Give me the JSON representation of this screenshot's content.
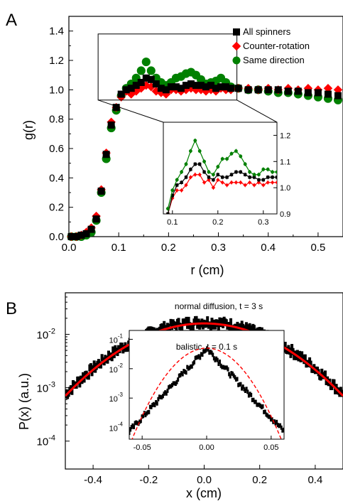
{
  "colors": {
    "all": "#000000",
    "counter": "#ff0000",
    "same": "#008000",
    "fit": "#ff0000"
  },
  "chart_data": [
    {
      "panel": "A",
      "type": "scatter",
      "xlabel": "r (cm)",
      "ylabel": "g(r)",
      "xlim": [
        0.0,
        0.55
      ],
      "ylim": [
        0.0,
        1.5
      ],
      "xticks": [
        "0.0",
        "0.1",
        "0.2",
        "0.3",
        "0.4",
        "0.5"
      ],
      "yticks": [
        "0.0",
        "0.2",
        "0.4",
        "0.6",
        "0.8",
        "1.0",
        "1.2",
        "1.4"
      ],
      "legend_position": "top-right",
      "series": [
        {
          "name": "All spinners",
          "marker": "square",
          "color": "#000000",
          "x": [
            0.005,
            0.015,
            0.025,
            0.035,
            0.045,
            0.055,
            0.065,
            0.075,
            0.085,
            0.095,
            0.105,
            0.115,
            0.125,
            0.135,
            0.145,
            0.155,
            0.165,
            0.175,
            0.185,
            0.195,
            0.205,
            0.215,
            0.225,
            0.235,
            0.245,
            0.255,
            0.265,
            0.275,
            0.285,
            0.295,
            0.305,
            0.315,
            0.325,
            0.34,
            0.36,
            0.38,
            0.4,
            0.42,
            0.44,
            0.46,
            0.48,
            0.5,
            0.52,
            0.54
          ],
          "y": [
            0.0,
            0.0,
            0.01,
            0.02,
            0.05,
            0.12,
            0.31,
            0.56,
            0.76,
            0.88,
            0.97,
            1.0,
            1.01,
            1.03,
            1.05,
            1.08,
            1.07,
            1.04,
            1.01,
            1.0,
            1.02,
            1.02,
            1.01,
            1.03,
            1.04,
            1.03,
            1.03,
            1.02,
            1.03,
            1.01,
            1.02,
            1.02,
            1.01,
            1.01,
            1.0,
            1.0,
            1.0,
            1.0,
            0.99,
            0.99,
            0.98,
            0.98,
            0.97,
            0.96
          ]
        },
        {
          "name": "Counter-rotation",
          "marker": "diamond",
          "color": "#ff0000",
          "x": [
            0.005,
            0.015,
            0.025,
            0.035,
            0.045,
            0.055,
            0.065,
            0.075,
            0.085,
            0.095,
            0.105,
            0.115,
            0.125,
            0.135,
            0.145,
            0.155,
            0.165,
            0.175,
            0.185,
            0.195,
            0.205,
            0.215,
            0.225,
            0.235,
            0.245,
            0.255,
            0.265,
            0.275,
            0.285,
            0.295,
            0.305,
            0.315,
            0.325,
            0.34,
            0.36,
            0.38,
            0.4,
            0.42,
            0.44,
            0.46,
            0.48,
            0.5,
            0.52,
            0.54
          ],
          "y": [
            0.0,
            0.0,
            0.01,
            0.03,
            0.06,
            0.14,
            0.32,
            0.57,
            0.78,
            0.88,
            0.95,
            0.99,
            0.97,
            0.99,
            1.01,
            1.03,
            1.02,
            0.99,
            0.98,
            0.97,
            1.0,
            1.0,
            0.99,
            1.0,
            1.01,
            1.0,
            1.0,
            0.99,
            1.0,
            0.99,
            1.01,
            1.0,
            1.0,
            1.01,
            1.01,
            1.0,
            1.01,
            1.0,
            1.01,
            1.0,
            1.01,
            1.0,
            1.01,
            1.0
          ]
        },
        {
          "name": "Same direction",
          "marker": "circle",
          "color": "#008000",
          "x": [
            0.005,
            0.015,
            0.025,
            0.035,
            0.045,
            0.055,
            0.065,
            0.075,
            0.085,
            0.095,
            0.105,
            0.115,
            0.125,
            0.135,
            0.145,
            0.155,
            0.165,
            0.175,
            0.185,
            0.195,
            0.205,
            0.215,
            0.225,
            0.235,
            0.245,
            0.255,
            0.265,
            0.275,
            0.285,
            0.295,
            0.305,
            0.315,
            0.325,
            0.34,
            0.36,
            0.38,
            0.4,
            0.42,
            0.44,
            0.46,
            0.48,
            0.5,
            0.52,
            0.54
          ],
          "y": [
            0.0,
            0.0,
            0.0,
            0.01,
            0.03,
            0.11,
            0.3,
            0.53,
            0.74,
            0.86,
            0.96,
            1.01,
            1.04,
            1.08,
            1.13,
            1.19,
            1.13,
            1.08,
            1.05,
            1.03,
            1.05,
            1.08,
            1.09,
            1.11,
            1.12,
            1.1,
            1.07,
            1.04,
            1.05,
            1.06,
            1.08,
            1.05,
            1.02,
            1.01,
            1.0,
            1.0,
            0.99,
            0.98,
            0.98,
            0.97,
            0.96,
            0.95,
            0.94,
            0.93
          ]
        }
      ],
      "inset": {
        "xlim": [
          0.08,
          0.33
        ],
        "ylim": [
          0.9,
          1.25
        ],
        "xticks": [
          "0.1",
          "0.2",
          "0.3"
        ],
        "yticks": [
          "0.9",
          "1.0",
          "1.1",
          "1.2"
        ],
        "series": [
          {
            "name": "All spinners",
            "color": "#000000",
            "x": [
              0.09,
              0.1,
              0.11,
              0.12,
              0.13,
              0.14,
              0.15,
              0.16,
              0.17,
              0.18,
              0.19,
              0.2,
              0.21,
              0.22,
              0.23,
              0.24,
              0.25,
              0.26,
              0.27,
              0.28,
              0.29,
              0.3,
              0.31,
              0.32,
              0.33
            ],
            "y": [
              0.9,
              0.97,
              1.01,
              1.02,
              1.04,
              1.07,
              1.09,
              1.09,
              1.06,
              1.04,
              1.03,
              1.05,
              1.04,
              1.04,
              1.05,
              1.06,
              1.06,
              1.05,
              1.04,
              1.04,
              1.03,
              1.03,
              1.04,
              1.04,
              1.04
            ]
          },
          {
            "name": "Counter-rotation",
            "color": "#ff0000",
            "x": [
              0.09,
              0.1,
              0.11,
              0.12,
              0.13,
              0.14,
              0.15,
              0.16,
              0.17,
              0.18,
              0.19,
              0.2,
              0.21,
              0.22,
              0.23,
              0.24,
              0.25,
              0.26,
              0.27,
              0.28,
              0.29,
              0.3,
              0.31,
              0.32,
              0.33
            ],
            "y": [
              0.9,
              0.96,
              0.99,
              0.99,
              1.01,
              1.04,
              1.05,
              1.05,
              1.02,
              1.03,
              1.0,
              1.03,
              1.02,
              1.01,
              1.02,
              1.02,
              1.02,
              1.01,
              1.02,
              1.01,
              1.02,
              1.01,
              1.02,
              1.02,
              1.02
            ]
          },
          {
            "name": "Same direction",
            "color": "#008000",
            "x": [
              0.09,
              0.1,
              0.11,
              0.12,
              0.13,
              0.14,
              0.15,
              0.16,
              0.17,
              0.18,
              0.19,
              0.2,
              0.21,
              0.22,
              0.23,
              0.24,
              0.25,
              0.26,
              0.27,
              0.28,
              0.29,
              0.3,
              0.31,
              0.32,
              0.33
            ],
            "y": [
              0.92,
              0.99,
              1.03,
              1.06,
              1.09,
              1.14,
              1.18,
              1.14,
              1.1,
              1.06,
              1.05,
              1.08,
              1.11,
              1.11,
              1.13,
              1.14,
              1.12,
              1.09,
              1.06,
              1.05,
              1.05,
              1.07,
              1.07,
              1.06,
              1.06
            ]
          }
        ]
      }
    },
    {
      "panel": "B",
      "type": "scatter",
      "xlabel": "x (cm)",
      "ylabel": "P(x) (a.u.)",
      "yscale": "log",
      "xlim": [
        -0.5,
        0.5
      ],
      "ylim": [
        3e-05,
        0.06
      ],
      "xticks": [
        "-0.4",
        "-0.2",
        "0.0",
        "0.2",
        "0.4"
      ],
      "yticks": [
        {
          "base": "10",
          "exp": "-4"
        },
        {
          "base": "10",
          "exp": "-3"
        },
        {
          "base": "10",
          "exp": "-2"
        }
      ],
      "annotation": "normal diffusion, t = 3 s",
      "data": {
        "sigma": 0.2,
        "peak": 0.017
      },
      "fit": {
        "sigma": 0.2,
        "peak": 0.016
      },
      "inset": {
        "annotation": "balistic, t = 0.1 s",
        "yscale": "log",
        "xlim": [
          -0.06,
          0.06
        ],
        "ylim": [
          4e-05,
          0.2
        ],
        "xticks": [
          "-0.05",
          "0.00",
          "0.05"
        ],
        "yticks": [
          {
            "base": "10",
            "exp": "-4"
          },
          {
            "base": "10",
            "exp": "-3"
          },
          {
            "base": "10",
            "exp": "-2"
          },
          {
            "base": "10",
            "exp": "-1"
          }
        ],
        "data": {
          "peak": 0.05,
          "decay_length": 0.0092
        },
        "fit": {
          "peak": 0.05,
          "sigma": 0.0153
        }
      }
    }
  ],
  "panel_labels": {
    "a": "A",
    "b": "B"
  }
}
